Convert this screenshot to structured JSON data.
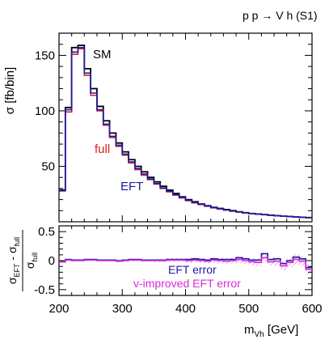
{
  "process_label": "p p → V h (S1)",
  "chart_data": [
    {
      "type": "line",
      "step": true,
      "ylabel": "σ [fb/bin]",
      "ylim": [
        0,
        170
      ],
      "yticks": [
        50,
        100,
        150
      ],
      "x_edges": [
        200,
        210,
        220,
        230,
        240,
        250,
        260,
        270,
        280,
        290,
        300,
        310,
        320,
        330,
        340,
        350,
        360,
        370,
        380,
        390,
        400,
        410,
        420,
        430,
        440,
        450,
        460,
        470,
        480,
        490,
        500,
        510,
        520,
        530,
        540,
        550,
        560,
        570,
        580,
        590,
        600
      ],
      "series": [
        {
          "name": "SM",
          "color": "#000000",
          "values": [
            28,
            103,
            157,
            159,
            138,
            120,
            104,
            91,
            80,
            71,
            63,
            56,
            50,
            45,
            40,
            36,
            32,
            28.5,
            25.5,
            22.5,
            20,
            18,
            16,
            14.5,
            13,
            12,
            11,
            10,
            9,
            8.2,
            7.5,
            7,
            6.5,
            6,
            5.5,
            5,
            4.7,
            4.4,
            4.1,
            3.8
          ]
        },
        {
          "name": "full",
          "color": "#e02020",
          "values": [
            29,
            99,
            151,
            156,
            132,
            114,
            100,
            87,
            76,
            68,
            60,
            53,
            47,
            42,
            38,
            34,
            30,
            27,
            24,
            21.5,
            19,
            17,
            15.5,
            14,
            12.5,
            11.5,
            10.5,
            9.5,
            8.7,
            8,
            7.3,
            6.8,
            6.3,
            5.8,
            5.4,
            5,
            4.6,
            4.3,
            4,
            3.7
          ]
        },
        {
          "name": "EFT",
          "color": "#1a1aa6",
          "values": [
            28.5,
            101,
            153,
            157,
            134,
            116,
            101,
            88,
            77,
            69,
            61,
            54,
            48,
            43,
            38.5,
            34.5,
            30.5,
            27.5,
            24.5,
            22,
            19.5,
            17.5,
            15.8,
            14.2,
            12.8,
            11.7,
            10.7,
            9.7,
            8.9,
            8.1,
            7.4,
            6.9,
            6.4,
            5.9,
            5.5,
            5.1,
            4.7,
            4.4,
            4.1,
            3.8
          ]
        }
      ],
      "annotations": [
        "SM",
        "full",
        "EFT"
      ]
    },
    {
      "type": "line",
      "step": true,
      "ylabel_main": "σ",
      "ylabel_main_sub": "EFT",
      "ylabel_mid": " - σ",
      "ylabel_mid_sub": "full",
      "ylabel_den": "σ",
      "ylabel_den_sub": "full",
      "xlabel_main": "m",
      "xlabel_sub": "Vh",
      "xlabel_unit": " [GeV]",
      "xlim": [
        200,
        600
      ],
      "xticks": [
        200,
        300,
        400,
        500,
        600
      ],
      "ylim": [
        -0.6,
        0.6
      ],
      "yticks": [
        -0.5,
        0,
        0.5
      ],
      "ytick_labels": [
        "-0.5",
        "0",
        "0.5"
      ],
      "x_edges": [
        200,
        210,
        220,
        230,
        240,
        250,
        260,
        270,
        280,
        290,
        300,
        310,
        320,
        330,
        340,
        350,
        360,
        370,
        380,
        390,
        400,
        410,
        420,
        430,
        440,
        450,
        460,
        470,
        480,
        490,
        500,
        510,
        520,
        530,
        540,
        550,
        560,
        570,
        580,
        590,
        600
      ],
      "series": [
        {
          "name": "EFT error",
          "color": "#1a1aa6",
          "values": [
            -0.02,
            0.02,
            0.01,
            0.01,
            0.02,
            0.02,
            0.01,
            0.01,
            0.01,
            0.0,
            0.01,
            0.02,
            0.02,
            0.01,
            0.01,
            0.01,
            0.01,
            0.02,
            0.02,
            0.02,
            0.02,
            0.03,
            0.02,
            0.01,
            0.03,
            0.02,
            0.02,
            0.02,
            0.05,
            0.03,
            0.01,
            0.01,
            0.12,
            0.02,
            0.03,
            -0.05,
            0.0,
            0.06,
            0.03,
            -0.12
          ]
        },
        {
          "name": "v-improved EFT error",
          "color": "#d62bd6",
          "values": [
            -0.02,
            0.01,
            0.0,
            0.0,
            0.01,
            0.01,
            0.0,
            0.0,
            0.0,
            -0.01,
            0.0,
            0.01,
            0.01,
            0.0,
            0.0,
            0.0,
            0.0,
            0.01,
            0.01,
            0.01,
            0.0,
            0.01,
            0.0,
            -0.01,
            0.01,
            0.0,
            -0.01,
            0.0,
            0.02,
            0.0,
            -0.02,
            -0.03,
            0.05,
            -0.02,
            -0.01,
            -0.09,
            -0.03,
            0.02,
            -0.01,
            -0.15
          ],
          "band": [
            0.01,
            0.01,
            0.01,
            0.01,
            0.01,
            0.01,
            0.01,
            0.01,
            0.01,
            0.02,
            0.02,
            0.02,
            0.02,
            0.02,
            0.02,
            0.03,
            0.03,
            0.03,
            0.03,
            0.03,
            0.04,
            0.04,
            0.04,
            0.04,
            0.05,
            0.05,
            0.05,
            0.05,
            0.06,
            0.06,
            0.06,
            0.07,
            0.07,
            0.07,
            0.08,
            0.08,
            0.08,
            0.09,
            0.09,
            0.09
          ]
        }
      ],
      "annotations": [
        "EFT error",
        "v-improved EFT error"
      ]
    }
  ]
}
